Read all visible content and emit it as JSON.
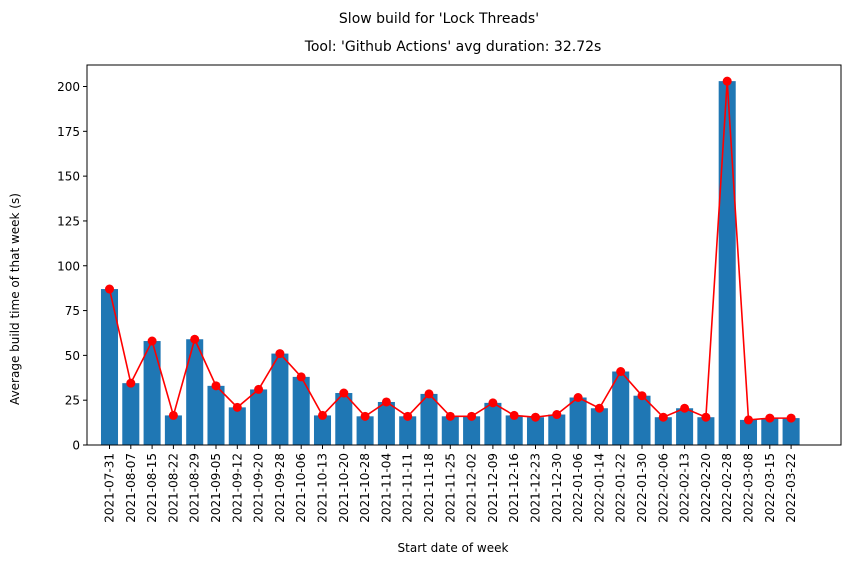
{
  "chart_data": {
    "type": "bar",
    "suptitle": "Slow build for 'Lock Threads'",
    "title": "Tool: 'Github Actions' avg duration: 32.72s",
    "xlabel": "Start date of week",
    "ylabel": "Average build time of that week (s)",
    "ylim": [
      0,
      212
    ],
    "yticks": [
      0,
      25,
      50,
      75,
      100,
      125,
      150,
      175,
      200
    ],
    "grid": false,
    "colors": {
      "bar": "#1f77b4",
      "line": "#ff0000"
    },
    "categories": [
      "2021-07-31",
      "2021-08-07",
      "2021-08-15",
      "2021-08-22",
      "2021-08-29",
      "2021-09-05",
      "2021-09-12",
      "2021-09-20",
      "2021-09-28",
      "2021-10-06",
      "2021-10-13",
      "2021-10-20",
      "2021-10-28",
      "2021-11-04",
      "2021-11-11",
      "2021-11-18",
      "2021-11-25",
      "2021-12-02",
      "2021-12-09",
      "2021-12-16",
      "2021-12-23",
      "2021-12-30",
      "2022-01-06",
      "2022-01-14",
      "2022-01-22",
      "2022-01-30",
      "2022-02-06",
      "2022-02-13",
      "2022-02-20",
      "2022-02-28",
      "2022-03-08",
      "2022-03-15",
      "2022-03-22"
    ],
    "values": [
      87,
      34.5,
      58,
      16.5,
      59,
      33,
      21,
      31,
      51,
      38,
      16.5,
      29,
      16,
      24,
      16,
      28.5,
      16,
      16,
      23.5,
      16.5,
      15.5,
      17,
      26.5,
      20.5,
      41,
      27.5,
      15.5,
      20.5,
      15.5,
      203,
      14,
      15,
      15
    ],
    "series": [
      {
        "type": "bar",
        "values": [
          87,
          34.5,
          58,
          16.5,
          59,
          33,
          21,
          31,
          51,
          38,
          16.5,
          29,
          16,
          24,
          16,
          28.5,
          16,
          16,
          23.5,
          16.5,
          15.5,
          17,
          26.5,
          20.5,
          41,
          27.5,
          15.5,
          20.5,
          15.5,
          203,
          14,
          15,
          15
        ]
      },
      {
        "type": "line",
        "marker": "circle",
        "values": [
          87,
          34.5,
          58,
          16.5,
          59,
          33,
          21,
          31,
          51,
          38,
          16.5,
          29,
          16,
          24,
          16,
          28.5,
          16,
          16,
          23.5,
          16.5,
          15.5,
          17,
          26.5,
          20.5,
          41,
          27.5,
          15.5,
          20.5,
          15.5,
          203,
          14,
          15,
          15
        ]
      }
    ]
  }
}
